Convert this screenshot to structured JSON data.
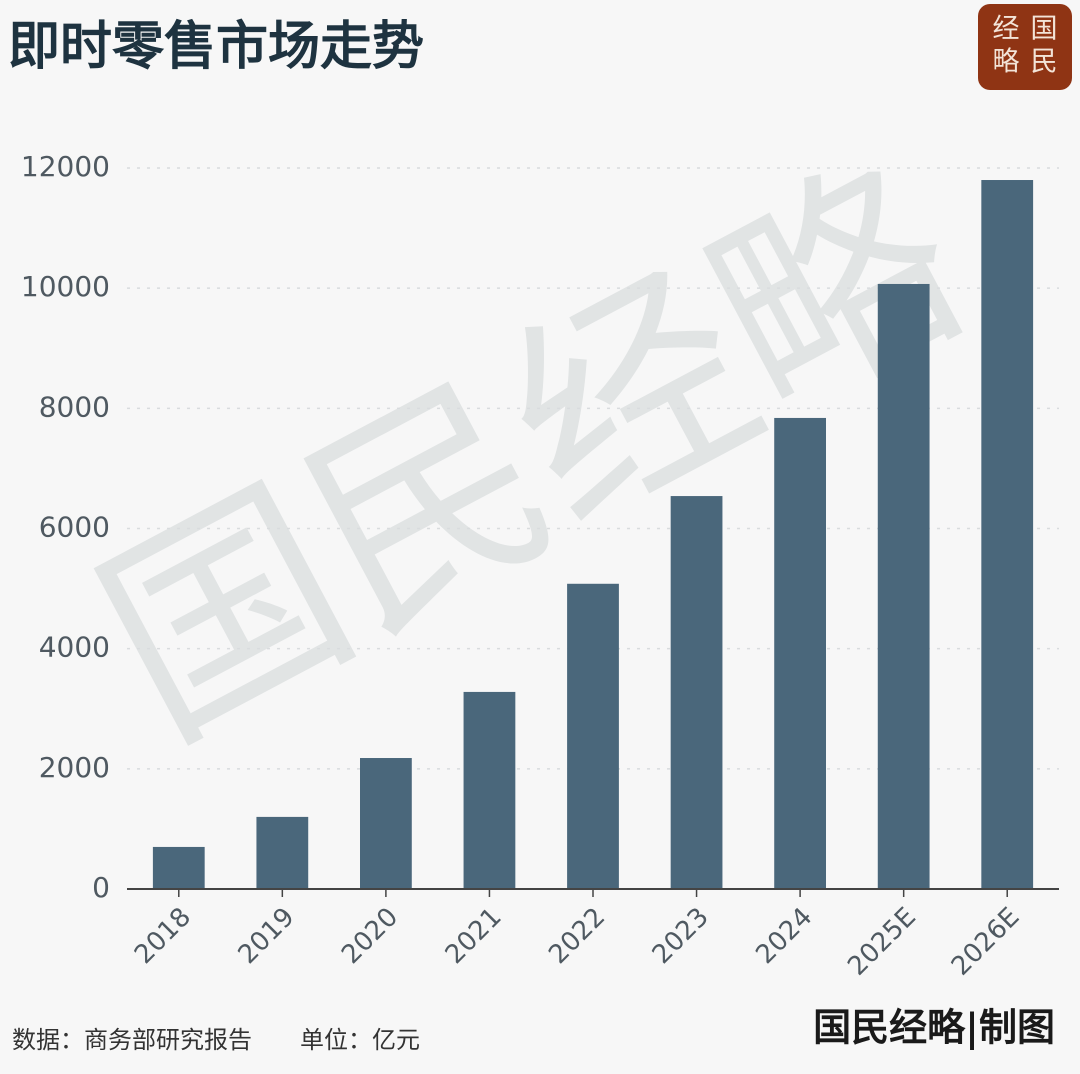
{
  "chart_data": {
    "type": "bar",
    "title": "即时零售市场走势",
    "categories": [
      "2018",
      "2019",
      "2020",
      "2021",
      "2022",
      "2023",
      "2024",
      "2025E",
      "2026E"
    ],
    "values": [
      700,
      1200,
      2180,
      3280,
      5080,
      6540,
      7840,
      10070,
      11800
    ],
    "color": "#4a677b",
    "ylim": [
      0,
      12000
    ],
    "yticks": [
      0,
      2000,
      4000,
      6000,
      8000,
      10000,
      12000
    ],
    "grid": true,
    "source": "数据：商务部研究报告",
    "unit": "单位：亿元",
    "credit": "国民经略|制图",
    "watermark": "国民经略",
    "logo": [
      "经",
      "国",
      "略",
      "民"
    ]
  }
}
